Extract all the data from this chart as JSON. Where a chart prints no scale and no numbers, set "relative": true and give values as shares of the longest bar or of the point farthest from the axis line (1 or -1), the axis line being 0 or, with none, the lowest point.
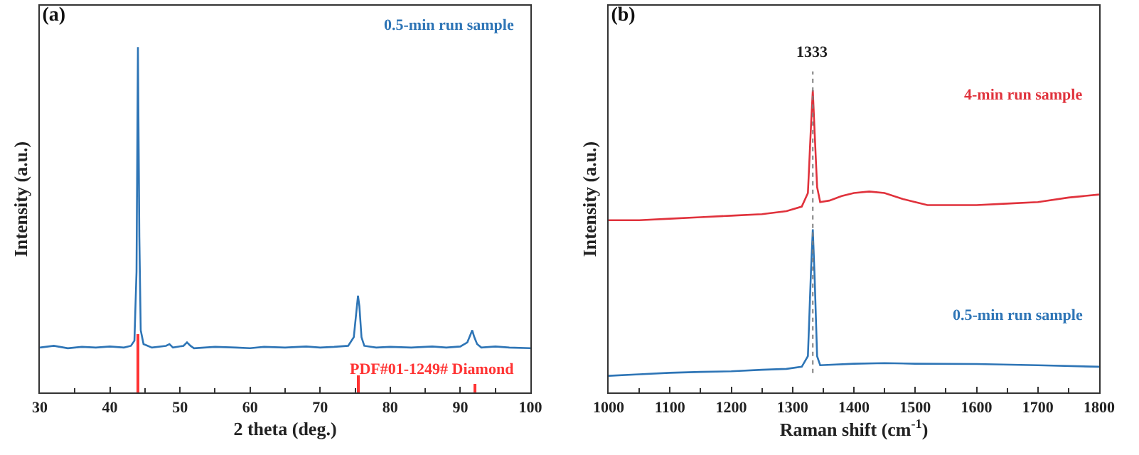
{
  "chart_data": [
    {
      "type": "line",
      "title": "(a)",
      "xlabel": "2 theta (deg.)",
      "ylabel": "Intensity (a.u.)",
      "relative": true,
      "xlim": [
        30,
        100
      ],
      "xticks": [
        30,
        40,
        50,
        60,
        70,
        80,
        90,
        100
      ],
      "grid": false,
      "legend": false,
      "marker": "none",
      "line_style": "solid",
      "series": [
        {
          "name": "0.5-min run sample",
          "color": "#2e75b6",
          "x": [
            30,
            32,
            34,
            36,
            38,
            40,
            42,
            43,
            43.5,
            43.8,
            44.0,
            44.2,
            44.4,
            44.8,
            46,
            48,
            48.5,
            49,
            50.5,
            51,
            51.5,
            52,
            55,
            58,
            60,
            62,
            65,
            68,
            70,
            72,
            74,
            74.8,
            75.2,
            75.4,
            75.6,
            75.9,
            76.3,
            78,
            80,
            83,
            86,
            88,
            90,
            91,
            91.5,
            91.7,
            92,
            92.4,
            93,
            95,
            97,
            100
          ],
          "values": [
            0.13,
            0.135,
            0.128,
            0.132,
            0.13,
            0.133,
            0.13,
            0.135,
            0.15,
            0.35,
            1,
            0.45,
            0.18,
            0.14,
            0.13,
            0.135,
            0.14,
            0.13,
            0.135,
            0.145,
            0.135,
            0.128,
            0.132,
            0.13,
            0.128,
            0.132,
            0.13,
            0.133,
            0.13,
            0.132,
            0.135,
            0.16,
            0.24,
            0.28,
            0.25,
            0.16,
            0.135,
            0.13,
            0.132,
            0.13,
            0.133,
            0.13,
            0.133,
            0.145,
            0.17,
            0.18,
            0.16,
            0.14,
            0.13,
            0.133,
            0.13,
            0.128
          ]
        },
        {
          "name": "PDF#01-1249# Diamond",
          "type": "bar",
          "color": "#ff3333",
          "x": [
            44.0,
            75.4,
            92.1
          ],
          "values": [
            0.17,
            0.05,
            0.024
          ]
        }
      ]
    },
    {
      "type": "line",
      "title": "(b)",
      "xlabel": "Raman shift (cm$^{-1}$)",
      "ylabel": "Intensity (a.u.)",
      "relative": true,
      "xlim": [
        1000,
        1800
      ],
      "xticks": [
        1000,
        1100,
        1200,
        1300,
        1400,
        1500,
        1600,
        1700,
        1800
      ],
      "grid": false,
      "legend": false,
      "marker": "none",
      "line_style": "solid",
      "ref_lines": [
        {
          "axis": "x",
          "value": 1333,
          "label": "1333",
          "color": "#808080",
          "line_style": "dotted"
        }
      ],
      "series": [
        {
          "name": "4-min run sample",
          "color": "#e0323c",
          "x": [
            1000,
            1050,
            1100,
            1150,
            1200,
            1250,
            1290,
            1315,
            1325,
            1330,
            1333,
            1336,
            1340,
            1345,
            1360,
            1380,
            1400,
            1425,
            1450,
            1480,
            1500,
            1520,
            1560,
            1600,
            1650,
            1700,
            1750,
            1800
          ],
          "values": [
            0.57,
            0.57,
            0.575,
            0.58,
            0.585,
            0.59,
            0.6,
            0.615,
            0.66,
            0.88,
            1,
            0.86,
            0.68,
            0.63,
            0.635,
            0.65,
            0.66,
            0.665,
            0.66,
            0.64,
            0.63,
            0.62,
            0.62,
            0.62,
            0.625,
            0.63,
            0.645,
            0.655
          ]
        },
        {
          "name": "0.5-min run sample",
          "color": "#2e75b6",
          "x": [
            1000,
            1050,
            1100,
            1150,
            1200,
            1250,
            1290,
            1315,
            1325,
            1330,
            1333,
            1336,
            1340,
            1345,
            1400,
            1450,
            1500,
            1600,
            1700,
            1800
          ],
          "values": [
            0.055,
            0.06,
            0.065,
            0.068,
            0.07,
            0.075,
            0.078,
            0.085,
            0.12,
            0.4,
            0.54,
            0.38,
            0.12,
            0.09,
            0.095,
            0.097,
            0.095,
            0.094,
            0.09,
            0.085
          ]
        }
      ]
    }
  ]
}
